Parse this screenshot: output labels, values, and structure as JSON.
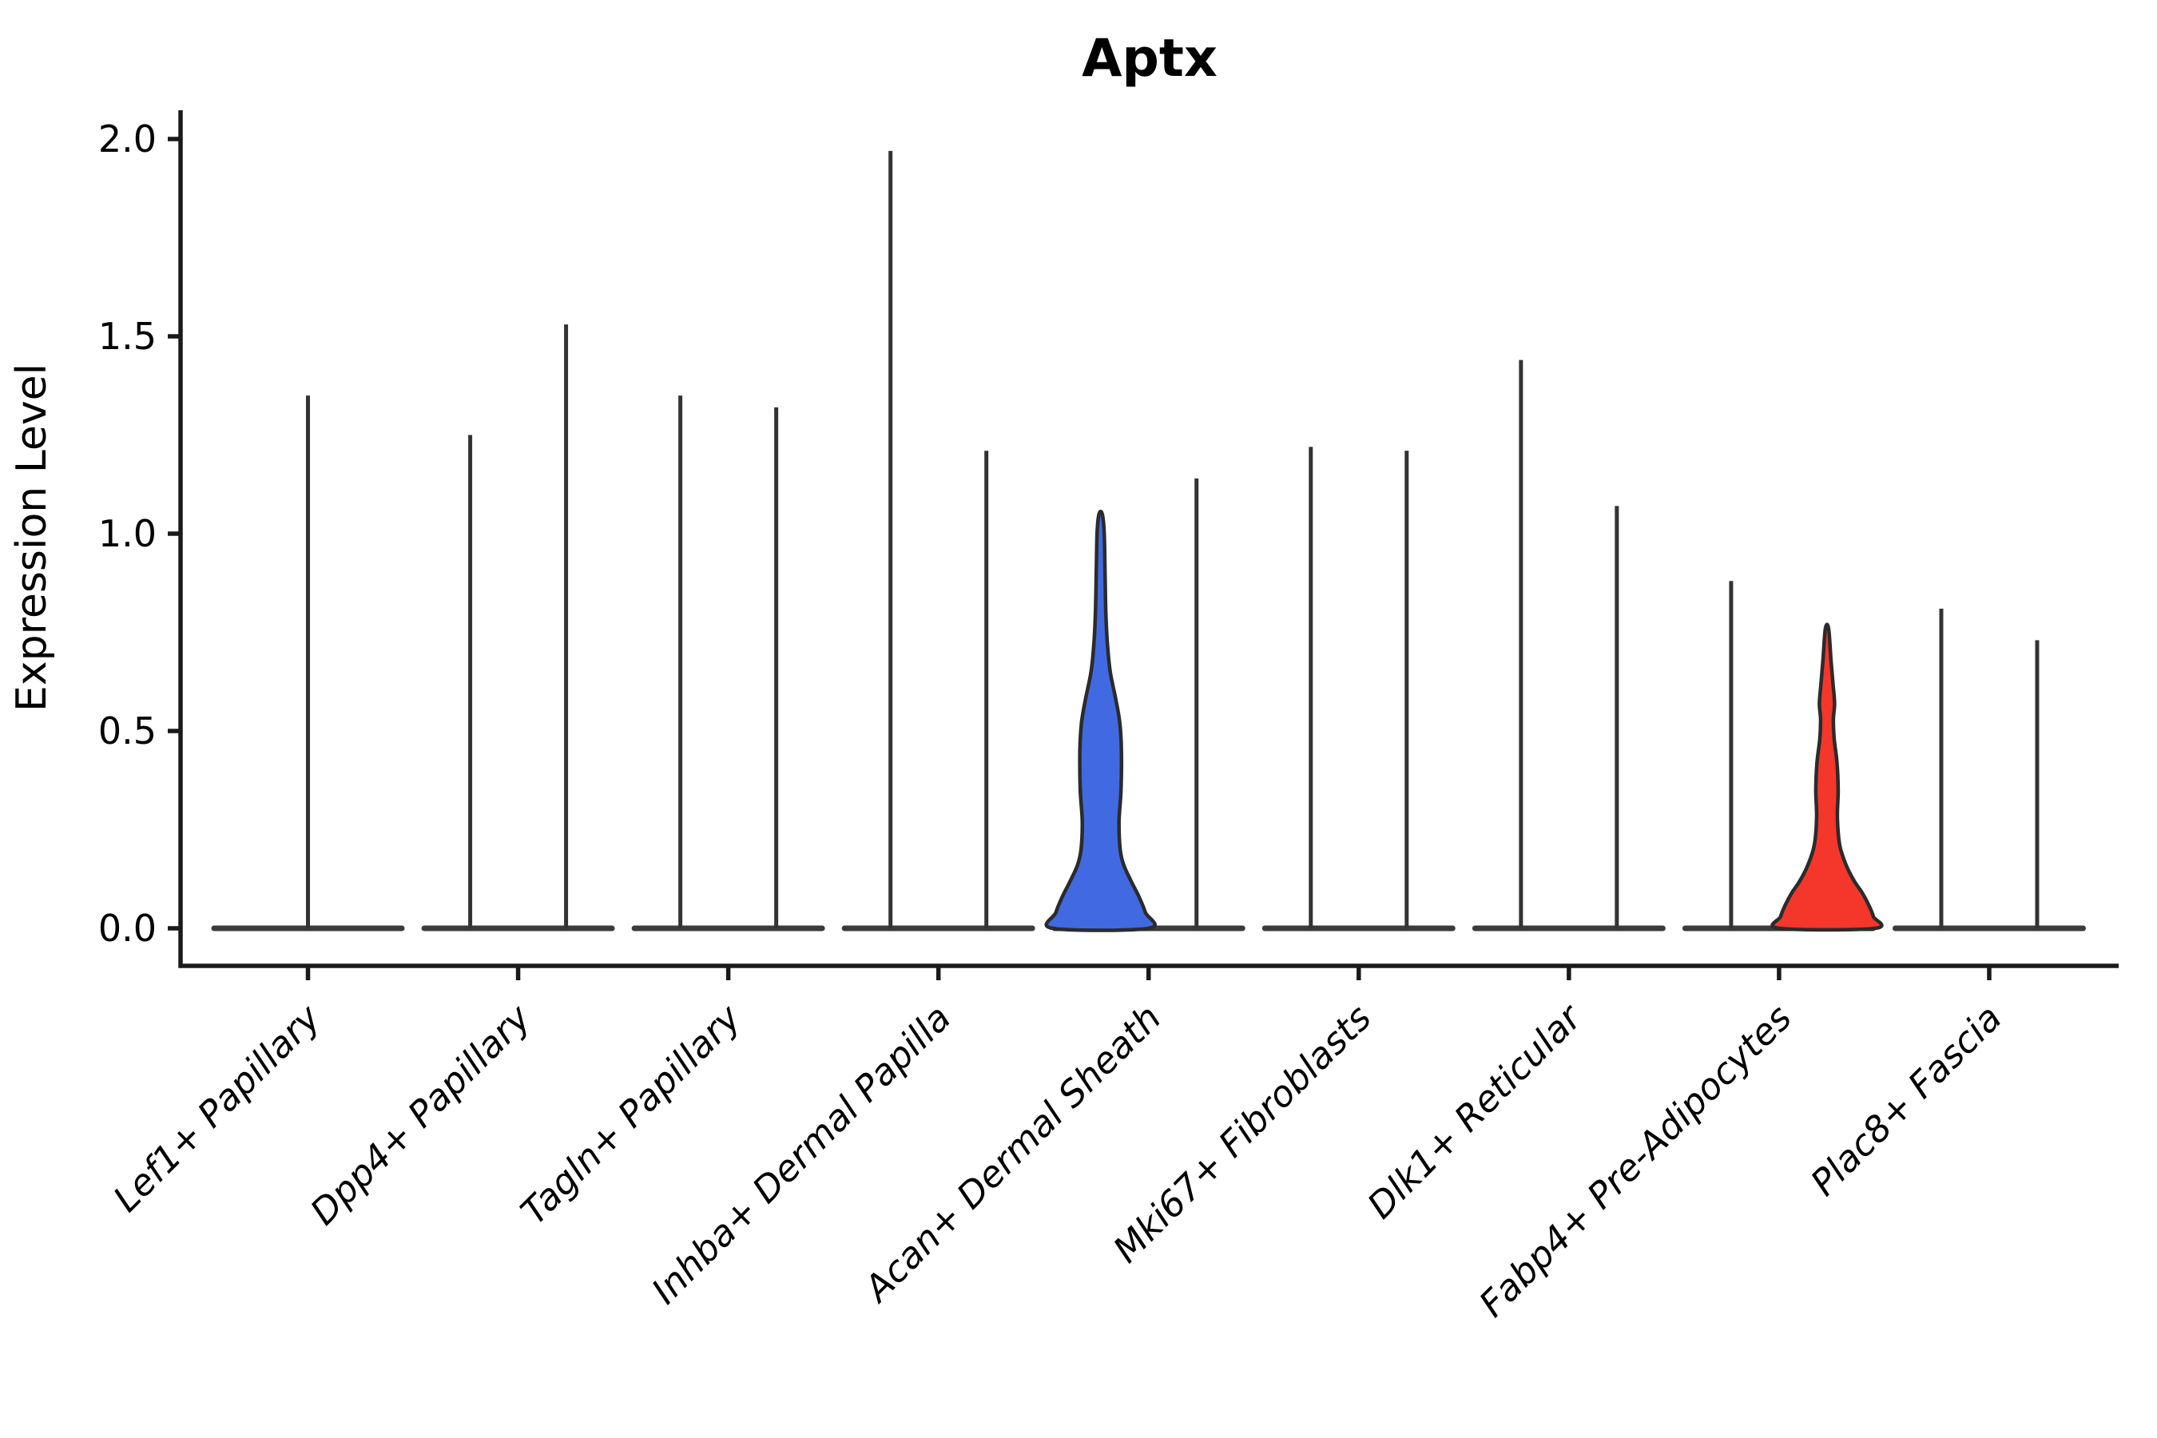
{
  "title": "Aptx",
  "y_axis": {
    "label": "Expression Level",
    "ticks": [
      "0.0",
      "0.5",
      "1.0",
      "1.5",
      "2.0"
    ]
  },
  "x_axis": {
    "categories": [
      "Lef1+ Papillary",
      "Dpp4+ Papillary",
      "Tagln+ Papillary",
      "Inhba+ Dermal Papilla",
      "Acan+ Dermal Sheath",
      "Mki67+ Fibroblasts",
      "Dlk1+ Reticular",
      "Fabp4+ Pre-Adipocytes",
      "Plac8+ Fascia"
    ]
  },
  "chart_data": {
    "type": "violin",
    "title": "Aptx",
    "ylabel": "Expression Level",
    "xlabel": "",
    "y_ticks": [
      0.0,
      0.5,
      1.0,
      1.5,
      2.0
    ],
    "ylim": [
      0.0,
      2.0
    ],
    "grid": "off",
    "legend": "none",
    "categories": [
      "Lef1+ Papillary",
      "Dpp4+ Papillary",
      "Tagln+ Papillary",
      "Inhba+ Dermal Papilla",
      "Acan+ Dermal Sheath",
      "Mki67+ Fibroblasts",
      "Dlk1+ Reticular",
      "Fabp4+ Pre-Adipocytes",
      "Plac8+ Fascia"
    ],
    "colors": {
      "spike": "#333333",
      "baseline": "#3B3B3B",
      "outline": "#2B2B2B",
      "axis": "#1A1A1A",
      "highlight_blue": "#4169E1",
      "highlight_red": "#F5362B"
    },
    "violins": [
      {
        "category": "Lef1+ Papillary",
        "slot": "center",
        "style": "spike",
        "max": 1.35
      },
      {
        "category": "Dpp4+ Papillary",
        "slot": "left",
        "style": "spike",
        "max": 1.25
      },
      {
        "category": "Dpp4+ Papillary",
        "slot": "right",
        "style": "spike",
        "max": 1.53
      },
      {
        "category": "Tagln+ Papillary",
        "slot": "left",
        "style": "spike",
        "max": 1.35
      },
      {
        "category": "Tagln+ Papillary",
        "slot": "right",
        "style": "spike",
        "max": 1.32
      },
      {
        "category": "Inhba+ Dermal Papilla",
        "slot": "left",
        "style": "spike",
        "max": 1.97
      },
      {
        "category": "Inhba+ Dermal Papilla",
        "slot": "right",
        "style": "spike",
        "max": 1.21
      },
      {
        "category": "Acan+ Dermal Sheath",
        "slot": "left",
        "style": "filled",
        "max": 1.05,
        "color": "#4169E1",
        "profile": [
          [
            0.0,
            60
          ],
          [
            0.04,
            56
          ],
          [
            0.08,
            48
          ],
          [
            0.12,
            38
          ],
          [
            0.16,
            29
          ],
          [
            0.2,
            24.5
          ],
          [
            0.27,
            23
          ],
          [
            0.35,
            25.5
          ],
          [
            0.45,
            26
          ],
          [
            0.52,
            24
          ],
          [
            0.58,
            19
          ],
          [
            0.65,
            12
          ],
          [
            0.72,
            8.5
          ],
          [
            0.8,
            6.5
          ],
          [
            0.9,
            5.5
          ],
          [
            1.0,
            4.5
          ],
          [
            1.05,
            2
          ]
        ]
      },
      {
        "category": "Acan+ Dermal Sheath",
        "slot": "right",
        "style": "spike",
        "max": 1.14
      },
      {
        "category": "Mki67+ Fibroblasts",
        "slot": "left",
        "style": "spike",
        "max": 1.22
      },
      {
        "category": "Mki67+ Fibroblasts",
        "slot": "right",
        "style": "spike",
        "max": 1.21
      },
      {
        "category": "Dlk1+ Reticular",
        "slot": "left",
        "style": "spike",
        "max": 1.44
      },
      {
        "category": "Dlk1+ Reticular",
        "slot": "right",
        "style": "spike",
        "max": 1.07
      },
      {
        "category": "Fabp4+ Pre-Adipocytes",
        "slot": "left",
        "style": "spike",
        "max": 0.88
      },
      {
        "category": "Fabp4+ Pre-Adipocytes",
        "slot": "right",
        "style": "filled",
        "max": 0.76,
        "color": "#F5362B",
        "profile": [
          [
            0.0,
            60
          ],
          [
            0.03,
            58
          ],
          [
            0.06,
            52
          ],
          [
            0.09,
            44
          ],
          [
            0.12,
            34
          ],
          [
            0.16,
            24
          ],
          [
            0.21,
            16
          ],
          [
            0.28,
            13
          ],
          [
            0.35,
            14
          ],
          [
            0.42,
            12.5
          ],
          [
            0.48,
            9
          ],
          [
            0.53,
            8
          ],
          [
            0.57,
            9.5
          ],
          [
            0.62,
            7.5
          ],
          [
            0.68,
            5
          ],
          [
            0.76,
            2
          ]
        ]
      },
      {
        "category": "Plac8+ Fascia",
        "slot": "left",
        "style": "spike",
        "max": 0.81
      },
      {
        "category": "Plac8+ Fascia",
        "slot": "right",
        "style": "spike",
        "max": 0.73
      }
    ]
  }
}
